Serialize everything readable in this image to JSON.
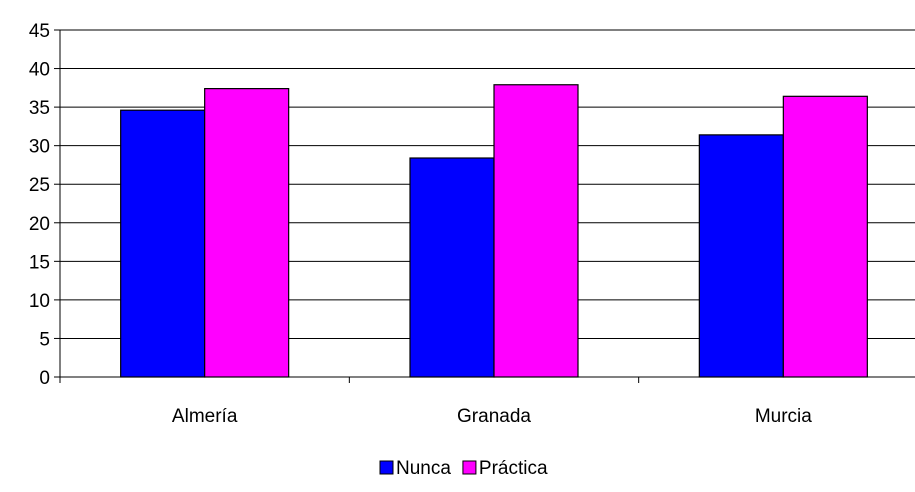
{
  "chart_data": {
    "type": "bar",
    "categories": [
      "Almería",
      "Granada",
      "Murcia"
    ],
    "series": [
      {
        "name": "Nunca",
        "values": [
          34.6,
          28.4,
          31.4
        ],
        "color": "#0000ff"
      },
      {
        "name": "Práctica",
        "values": [
          37.4,
          37.9,
          36.4
        ],
        "color": "#ff00ff"
      }
    ],
    "ylim": [
      0,
      45
    ],
    "yticks": [
      0,
      5,
      10,
      15,
      20,
      25,
      30,
      35,
      40,
      45
    ],
    "grid": true,
    "legend_position": "bottom-center"
  }
}
